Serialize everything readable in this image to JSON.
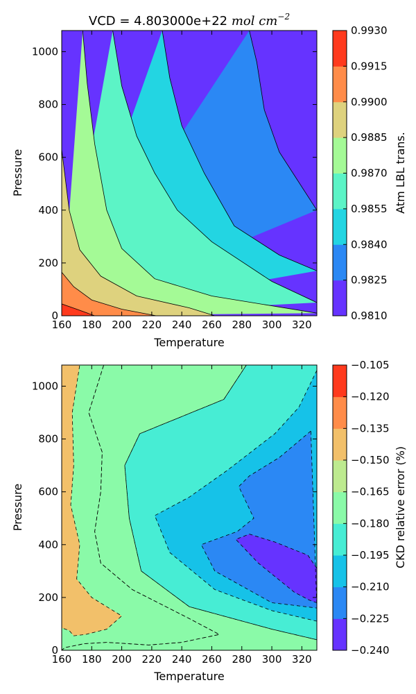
{
  "chart_data": [
    {
      "type": "contour",
      "title_prefix": "VCD = 4.803000e+22 ",
      "title_math": "mol cm",
      "title_exp": "−2",
      "xlabel": "Temperature",
      "ylabel": "Pressure",
      "xlim": [
        160,
        330
      ],
      "ylim": [
        0,
        1080
      ],
      "xticks": [
        "160",
        "180",
        "200",
        "220",
        "240",
        "260",
        "280",
        "300",
        "320"
      ],
      "yticks": [
        "0",
        "200",
        "400",
        "600",
        "800",
        "1000"
      ],
      "line_style": "solid",
      "colorbar": {
        "label": "Atm LBL trans.",
        "levels": [
          "0.9810",
          "0.9825",
          "0.9840",
          "0.9855",
          "0.9870",
          "0.9885",
          "0.9900",
          "0.9915",
          "0.9930"
        ],
        "colors": [
          "#6633ff",
          "#2b88f4",
          "#23d5e2",
          "#5cf4c6",
          "#a4fa96",
          "#ded27e",
          "#ff8c49",
          "#ff3a1d"
        ]
      },
      "contour_boundaries": [
        {
          "level": 0.9825,
          "points": [
            [
              285,
              1080
            ],
            [
              290,
              960
            ],
            [
              295,
              780
            ],
            [
              305,
              620
            ],
            [
              330,
              400
            ]
          ]
        },
        {
          "level": 0.984,
          "points": [
            [
              227,
              1080
            ],
            [
              232,
              900
            ],
            [
              240,
              720
            ],
            [
              255,
              540
            ],
            [
              275,
              340
            ],
            [
              305,
              230
            ],
            [
              330,
              170
            ]
          ]
        },
        {
          "level": 0.9855,
          "points": [
            [
              194,
              1080
            ],
            [
              200,
              870
            ],
            [
              210,
              680
            ],
            [
              222,
              540
            ],
            [
              237,
              400
            ],
            [
              260,
              280
            ],
            [
              300,
              130
            ],
            [
              330,
              50
            ]
          ]
        },
        {
          "level": 0.987,
          "points": [
            [
              174,
              1080
            ],
            [
              177,
              880
            ],
            [
              182,
              650
            ],
            [
              190,
              400
            ],
            [
              200,
              255
            ],
            [
              222,
              140
            ],
            [
              260,
              75
            ],
            [
              330,
              10
            ]
          ]
        },
        {
          "level": 0.9885,
          "points": [
            [
              160,
              630
            ],
            [
              165,
              400
            ],
            [
              172,
              250
            ],
            [
              186,
              150
            ],
            [
              210,
              75
            ],
            [
              245,
              30
            ],
            [
              262,
              0
            ]
          ]
        },
        {
          "level": 0.99,
          "points": [
            [
              160,
              165
            ],
            [
              168,
              110
            ],
            [
              180,
              60
            ],
            [
              200,
              25
            ],
            [
              223,
              0
            ]
          ]
        },
        {
          "level": 0.9915,
          "points": [
            [
              160,
              45
            ],
            [
              170,
              25
            ],
            [
              182,
              0
            ]
          ]
        }
      ]
    },
    {
      "type": "contour",
      "xlabel": "Temperature",
      "ylabel": "Pressure",
      "xlim": [
        160,
        330
      ],
      "ylim": [
        0,
        1080
      ],
      "xticks": [
        "160",
        "180",
        "200",
        "220",
        "240",
        "260",
        "280",
        "300",
        "320"
      ],
      "yticks": [
        "0",
        "200",
        "400",
        "600",
        "800",
        "1000"
      ],
      "line_style": "dashed",
      "colorbar": {
        "label": "CKD relative error (%)",
        "levels": [
          "−0.240",
          "−0.225",
          "−0.210",
          "−0.195",
          "−0.180",
          "−0.165",
          "−0.150",
          "−0.135",
          "−0.120",
          "−0.105"
        ],
        "colors": [
          "#6633ff",
          "#2b88f4",
          "#16c2e8",
          "#47edd4",
          "#8afaa8",
          "#bdea8f",
          "#f2c06a",
          "#ff8c49",
          "#ff3a1d"
        ]
      },
      "regions": [
        {
          "level": -0.15,
          "points": [
            [
              160,
              1080
            ],
            [
              172,
              1080
            ],
            [
              167,
              900
            ],
            [
              168,
              700
            ],
            [
              166,
              550
            ],
            [
              172,
              400
            ],
            [
              170,
              270
            ],
            [
              180,
              200
            ],
            [
              200,
              130
            ],
            [
              190,
              80
            ],
            [
              176,
              60
            ],
            [
              168,
              55
            ],
            [
              165,
              75
            ],
            [
              160,
              85
            ]
          ]
        },
        {
          "level": -0.165,
          "points": [
            [
              172,
              1080
            ],
            [
              188,
              1080
            ],
            [
              178,
              900
            ],
            [
              187,
              750
            ],
            [
              186,
              600
            ],
            [
              182,
              450
            ],
            [
              186,
              330
            ],
            [
              207,
              230
            ],
            [
              245,
              120
            ],
            [
              265,
              60
            ],
            [
              240,
              30
            ],
            [
              218,
              20
            ],
            [
              190,
              30
            ],
            [
              175,
              25
            ],
            [
              162,
              10
            ],
            [
              160,
              0
            ],
            [
              330,
              0
            ],
            [
              330,
              1080
            ]
          ]
        },
        {
          "level": -0.18,
          "points": [
            [
              188,
              1080
            ],
            [
              283,
              1080
            ],
            [
              268,
              950
            ],
            [
              212,
              820
            ],
            [
              202,
              700
            ],
            [
              205,
              500
            ],
            [
              213,
              300
            ],
            [
              245,
              165
            ],
            [
              300,
              80
            ],
            [
              330,
              40
            ],
            [
              330,
              0
            ],
            [
              160,
              0
            ],
            [
              162,
              10
            ],
            [
              175,
              25
            ],
            [
              190,
              30
            ],
            [
              218,
              20
            ],
            [
              240,
              30
            ],
            [
              265,
              60
            ],
            [
              245,
              120
            ],
            [
              207,
              230
            ],
            [
              186,
              330
            ],
            [
              182,
              450
            ],
            [
              186,
              600
            ],
            [
              187,
              750
            ],
            [
              178,
              900
            ]
          ]
        },
        {
          "level": -0.195,
          "points": [
            [
              283,
              1080
            ],
            [
              330,
              1080
            ],
            [
              330,
              0
            ],
            [
              330,
              40
            ],
            [
              300,
              80
            ],
            [
              245,
              165
            ],
            [
              213,
              300
            ],
            [
              205,
              500
            ],
            [
              202,
              700
            ],
            [
              212,
              820
            ],
            [
              268,
              950
            ]
          ]
        },
        {
          "level": -0.21,
          "points": [
            [
              330,
              1060
            ],
            [
              318,
              920
            ],
            [
              302,
              820
            ],
            [
              270,
              680
            ],
            [
              245,
              580
            ],
            [
              222,
              510
            ],
            [
              232,
              370
            ],
            [
              262,
              230
            ],
            [
              300,
              150
            ],
            [
              330,
              110
            ],
            [
              330,
              1060
            ]
          ]
        },
        {
          "level": -0.225,
          "points": [
            [
              326,
              830
            ],
            [
              305,
              730
            ],
            [
              285,
              660
            ],
            [
              278,
              620
            ],
            [
              288,
              500
            ],
            [
              277,
              450
            ],
            [
              253,
              400
            ],
            [
              262,
              300
            ],
            [
              300,
              180
            ],
            [
              330,
              160
            ]
          ]
        },
        {
          "level": -0.24,
          "points": [
            [
              330,
              310
            ],
            [
              324,
              360
            ],
            [
              302,
              410
            ],
            [
              285,
              440
            ],
            [
              276,
              420
            ],
            [
              291,
              330
            ],
            [
              315,
              220
            ],
            [
              325,
              190
            ],
            [
              330,
              180
            ]
          ]
        }
      ]
    }
  ]
}
